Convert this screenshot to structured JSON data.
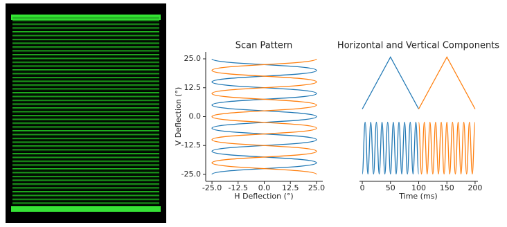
{
  "chart_data": [
    {
      "type": "scan",
      "title": "Scan Pattern",
      "xlabel": "H Deflection (°)",
      "ylabel": "V Deflection (°)",
      "xlim": [
        -28,
        28
      ],
      "ylim": [
        -28,
        28
      ],
      "xticks": [
        {
          "value": -25,
          "label": "-25.0"
        },
        -12.5,
        {
          "value": 0,
          "label": "0.0"
        },
        12.5,
        {
          "value": 25,
          "label": "25.0"
        }
      ],
      "yticks": [
        {
          "value": -25,
          "label": "-25.0"
        },
        -12.5,
        {
          "value": 0,
          "label": "0.0"
        },
        12.5,
        {
          "value": 25,
          "label": "25.0"
        }
      ],
      "series": [
        {
          "color": "#1f77b4",
          "x": [
            -25,
            25,
            -25,
            25,
            -25,
            25,
            -25,
            25,
            -25,
            25,
            -25,
            25,
            -25,
            25,
            -25,
            25,
            -25,
            25,
            -25,
            25,
            -25
          ],
          "values": [
            -25,
            -20,
            -15,
            -10,
            -5,
            0,
            5,
            10,
            15,
            20,
            25,
            20,
            15,
            10,
            5,
            0,
            -5,
            -10,
            -15,
            -20,
            -25
          ]
        },
        {
          "color": "#ff7f0e",
          "x": [
            25,
            -25,
            25,
            -25,
            25,
            -25,
            25,
            -25,
            25,
            -25,
            25,
            -25,
            25,
            -25,
            25,
            -25,
            25,
            -25,
            25,
            -25,
            25
          ],
          "values": [
            -25,
            -20,
            -15,
            -10,
            -5,
            0,
            5,
            10,
            15,
            20,
            25,
            20,
            15,
            10,
            5,
            0,
            -5,
            -10,
            -15,
            -20,
            -25
          ]
        }
      ]
    },
    {
      "type": "components",
      "title": "Horizontal and Vertical Components",
      "xlabel": "Time (ms)",
      "xlim": [
        -5,
        205
      ],
      "ylim": [
        -28,
        28
      ],
      "xticks": [
        0,
        50,
        100,
        150,
        200
      ],
      "series": [
        {
          "panel": "top",
          "shape": "straight",
          "color": "#1f77b4",
          "x": [
            0,
            5,
            10,
            15,
            20,
            25,
            30,
            35,
            40,
            45,
            50,
            55,
            60,
            65,
            70,
            75,
            80,
            85,
            90,
            95,
            100
          ],
          "values": [
            -25,
            -20,
            -15,
            -10,
            -5,
            0,
            5,
            10,
            15,
            20,
            25,
            20,
            15,
            10,
            5,
            0,
            -5,
            -10,
            -15,
            -20,
            -25
          ]
        },
        {
          "panel": "top",
          "shape": "straight",
          "color": "#ff7f0e",
          "x": [
            100,
            105,
            110,
            115,
            120,
            125,
            130,
            135,
            140,
            145,
            150,
            155,
            160,
            165,
            170,
            175,
            180,
            185,
            190,
            195,
            200
          ],
          "values": [
            -25,
            -20,
            -15,
            -10,
            -5,
            0,
            5,
            10,
            15,
            20,
            25,
            20,
            15,
            10,
            5,
            0,
            -5,
            -10,
            -15,
            -20,
            -25
          ]
        },
        {
          "panel": "bottom",
          "shape": "smooth",
          "color": "#1f77b4",
          "x": [
            0,
            5,
            10,
            15,
            20,
            25,
            30,
            35,
            40,
            45,
            50,
            55,
            60,
            65,
            70,
            75,
            80,
            85,
            90,
            95,
            100
          ],
          "values": [
            -25,
            25,
            -25,
            25,
            -25,
            25,
            -25,
            25,
            -25,
            25,
            -25,
            25,
            -25,
            25,
            -25,
            25,
            -25,
            25,
            -25,
            25,
            -25
          ]
        },
        {
          "panel": "bottom",
          "shape": "smooth",
          "color": "#ff7f0e",
          "x": [
            100,
            105,
            110,
            115,
            120,
            125,
            130,
            135,
            140,
            145,
            150,
            155,
            160,
            165,
            170,
            175,
            180,
            185,
            190,
            195,
            200
          ],
          "values": [
            25,
            -25,
            25,
            -25,
            25,
            -25,
            25,
            -25,
            25,
            -25,
            25,
            -25,
            25,
            -25,
            25,
            -25,
            25,
            -25,
            25,
            -25,
            25
          ]
        }
      ]
    }
  ]
}
